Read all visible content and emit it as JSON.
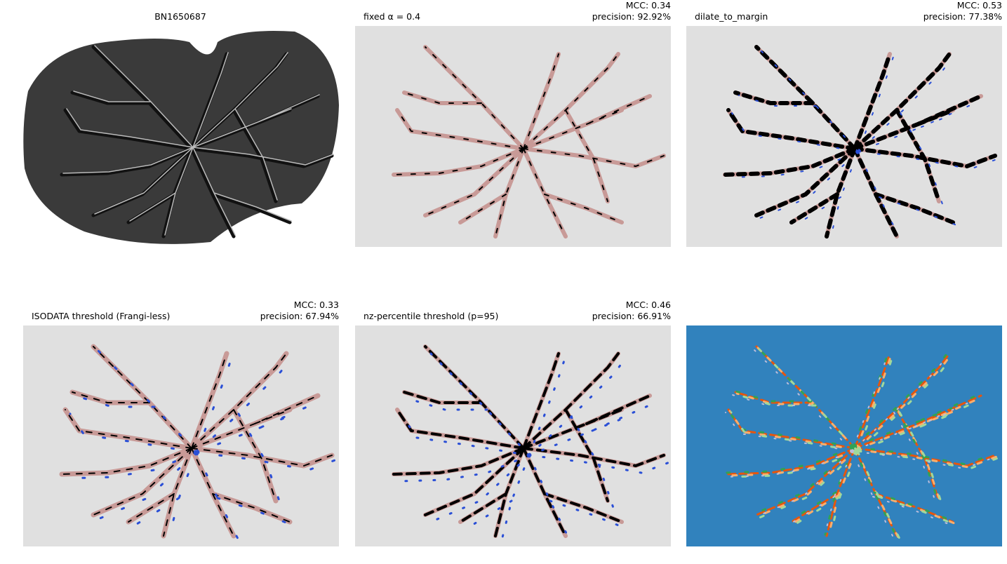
{
  "panels": [
    {
      "title": "BN1650687"
    },
    {
      "title": "fixed α = 0.4",
      "mcc": "MCC: 0.34",
      "precision": "precision: 92.92%"
    },
    {
      "title": "dilate_to_margin",
      "mcc": "MCC: 0.53",
      "precision": "precision: 77.38%"
    },
    {
      "title": "ISODATA threshold (Frangi-less)",
      "mcc": "MCC: 0.33",
      "precision": "precision: 67.94%"
    },
    {
      "title": "nz-percentile threshold (p=95)",
      "mcc": "MCC: 0.46",
      "precision": "precision: 66.91%"
    }
  ]
}
